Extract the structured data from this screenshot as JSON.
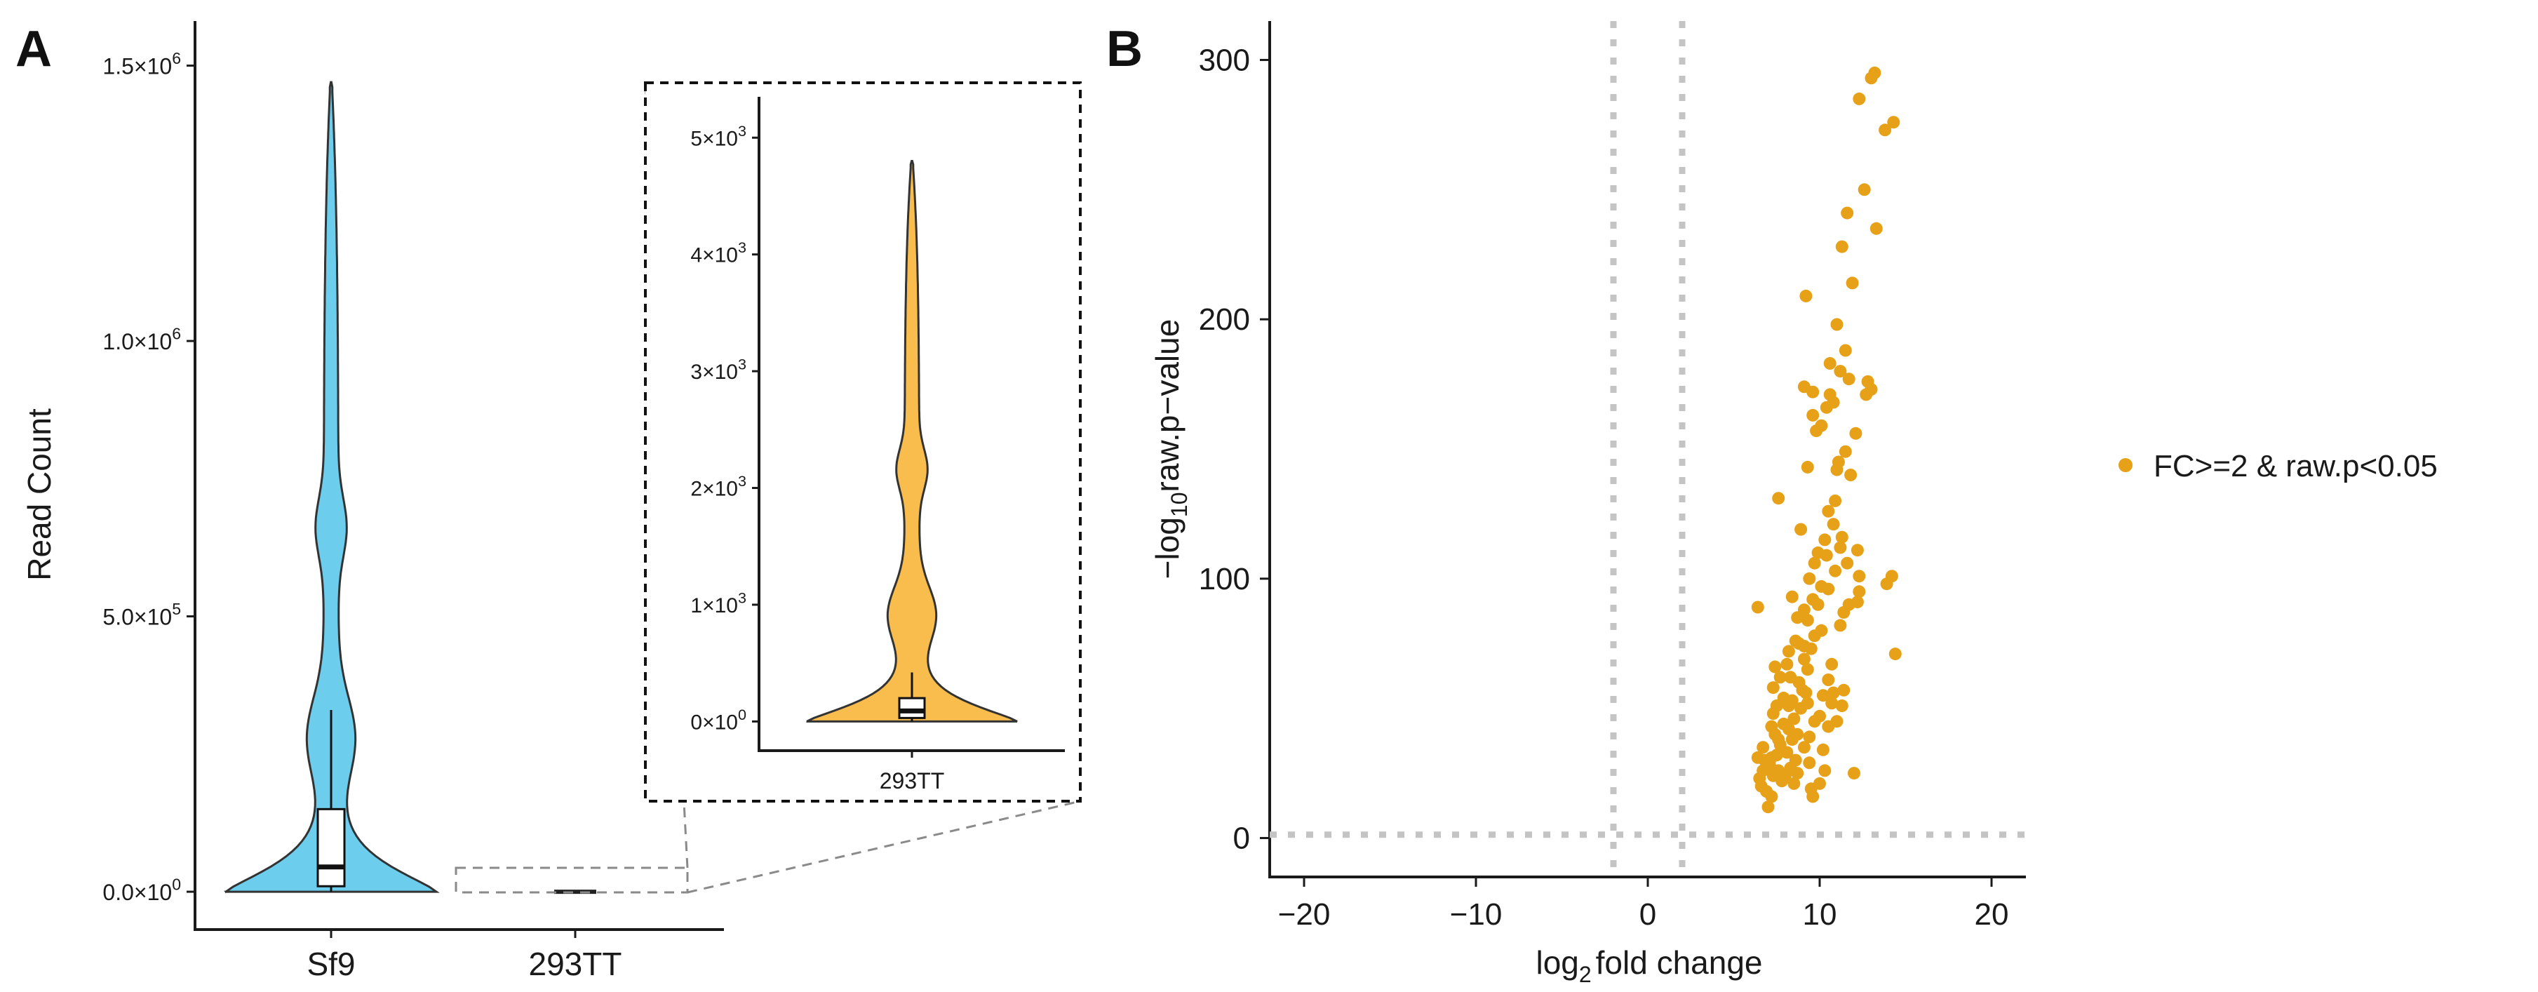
{
  "chart_data": [
    {
      "panel": "A",
      "type": "violin",
      "ylabel": "Read Count",
      "yticks": [
        {
          "value": 0,
          "mant": "0.0",
          "exp": "0"
        },
        {
          "value": 500000,
          "mant": "5.0",
          "exp": "5"
        },
        {
          "value": 1000000,
          "mant": "1.0",
          "exp": "6"
        },
        {
          "value": 1500000,
          "mant": "1.5",
          "exp": "6"
        }
      ],
      "ylim": [
        -5000,
        1530000
      ],
      "categories": [
        "Sf9",
        "293TT"
      ],
      "series": [
        {
          "name": "Sf9",
          "color": "#6ccdec",
          "max": 1470000,
          "q1": 10000,
          "median": 45000,
          "q3": 150000,
          "whisker_low": 0,
          "whisker_high": 330000
        },
        {
          "name": "293TT",
          "color": "#f9bd4e",
          "max": 4800,
          "q1": 30,
          "median": 90,
          "q3": 200,
          "whisker_low": 0,
          "whisker_high": 420
        }
      ],
      "inset": {
        "category": "293TT",
        "yticks": [
          {
            "value": 0,
            "mant": "0",
            "exp": "0"
          },
          {
            "value": 1000,
            "mant": "1",
            "exp": "3"
          },
          {
            "value": 2000,
            "mant": "2",
            "exp": "3"
          },
          {
            "value": 3000,
            "mant": "3",
            "exp": "3"
          },
          {
            "value": 4000,
            "mant": "4",
            "exp": "3"
          },
          {
            "value": 5000,
            "mant": "5",
            "exp": "3"
          }
        ],
        "ylim": [
          -250,
          5350
        ]
      }
    },
    {
      "panel": "B",
      "type": "scatter",
      "xlabel_main": "log",
      "xlabel_sub": "2",
      "xlabel_rest": "fold change",
      "ylabel_pre": "−log",
      "ylabel_sub": "10",
      "ylabel_rest": "raw.p−value",
      "xlim": [
        -22,
        22
      ],
      "ylim": [
        -15,
        315
      ],
      "xticks": [
        -20,
        -10,
        0,
        10,
        20
      ],
      "xtick_labels": [
        "−20",
        "−10",
        "0",
        "10",
        "20"
      ],
      "yticks": [
        0,
        100,
        200,
        300
      ],
      "vlines": [
        -2,
        2
      ],
      "hline": 1.3,
      "point_color": "#e6a118",
      "legend_label": "FC>=2 & raw.p<0.05",
      "legend_position": "right",
      "points": [
        [
          13.2,
          295
        ],
        [
          13,
          293
        ],
        [
          12.3,
          285
        ],
        [
          14.3,
          276
        ],
        [
          13.8,
          273
        ],
        [
          12.6,
          250
        ],
        [
          11.6,
          241
        ],
        [
          13.3,
          235
        ],
        [
          11.3,
          228
        ],
        [
          11.9,
          214
        ],
        [
          9.2,
          209
        ],
        [
          11,
          198
        ],
        [
          11.5,
          188
        ],
        [
          10.6,
          183
        ],
        [
          11.2,
          180
        ],
        [
          11.7,
          177
        ],
        [
          12.8,
          176
        ],
        [
          13,
          173
        ],
        [
          12.7,
          171
        ],
        [
          9.1,
          174
        ],
        [
          9.6,
          172
        ],
        [
          10.6,
          171
        ],
        [
          10.8,
          168
        ],
        [
          10.4,
          166
        ],
        [
          9.6,
          163
        ],
        [
          10.1,
          159
        ],
        [
          9.8,
          157
        ],
        [
          12.1,
          156
        ],
        [
          11.5,
          149
        ],
        [
          11.1,
          145
        ],
        [
          9.3,
          143
        ],
        [
          11.8,
          140
        ],
        [
          11,
          142
        ],
        [
          7.6,
          131
        ],
        [
          10.5,
          126
        ],
        [
          10.8,
          121
        ],
        [
          8.9,
          119
        ],
        [
          11.3,
          116
        ],
        [
          11.2,
          112
        ],
        [
          9.9,
          110
        ],
        [
          12.2,
          111
        ],
        [
          10.4,
          109
        ],
        [
          9.7,
          106
        ],
        [
          11.6,
          106
        ],
        [
          10.9,
          103
        ],
        [
          9.4,
          100
        ],
        [
          12.3,
          101
        ],
        [
          14.2,
          101
        ],
        [
          13.9,
          98
        ],
        [
          10.1,
          97
        ],
        [
          10.5,
          96
        ],
        [
          12.3,
          95
        ],
        [
          9.6,
          92
        ],
        [
          8.4,
          93
        ],
        [
          11.7,
          90
        ],
        [
          12.2,
          91
        ],
        [
          6.4,
          89
        ],
        [
          9.1,
          88
        ],
        [
          11.4,
          87
        ],
        [
          9.3,
          84
        ],
        [
          11.2,
          82
        ],
        [
          10.1,
          80
        ],
        [
          9.7,
          78
        ],
        [
          8.6,
          76
        ],
        [
          8.8,
          75
        ],
        [
          9.1,
          74
        ],
        [
          9.5,
          73
        ],
        [
          8.2,
          72
        ],
        [
          14.4,
          71
        ],
        [
          9.1,
          69
        ],
        [
          8.1,
          67
        ],
        [
          10.7,
          67
        ],
        [
          7.4,
          66
        ],
        [
          9.3,
          65
        ],
        [
          8.3,
          62
        ],
        [
          7.7,
          62
        ],
        [
          10.5,
          61
        ],
        [
          7.3,
          58
        ],
        [
          9,
          57
        ],
        [
          9.2,
          56
        ],
        [
          10.8,
          56
        ],
        [
          11.4,
          57
        ],
        [
          7.9,
          54
        ],
        [
          10.2,
          55
        ],
        [
          8.4,
          53
        ],
        [
          9.3,
          52
        ],
        [
          7.5,
          51
        ],
        [
          8.2,
          51
        ],
        [
          10.7,
          52
        ],
        [
          11.3,
          51
        ],
        [
          8.9,
          50
        ],
        [
          7.3,
          48
        ],
        [
          10,
          47
        ],
        [
          8.5,
          46
        ],
        [
          11,
          45
        ],
        [
          9.7,
          45
        ],
        [
          7.9,
          44
        ],
        [
          7.2,
          43
        ],
        [
          8.2,
          42
        ],
        [
          10.5,
          43
        ],
        [
          8.7,
          40
        ],
        [
          9.4,
          39
        ],
        [
          7.6,
          38
        ],
        [
          8.4,
          38
        ],
        [
          7.7,
          36
        ],
        [
          6.7,
          35
        ],
        [
          9.1,
          35
        ],
        [
          10.2,
          34
        ],
        [
          8.1,
          33
        ],
        [
          7.5,
          32
        ],
        [
          6.4,
          31
        ],
        [
          7.2,
          31
        ],
        [
          8.6,
          30
        ],
        [
          9.4,
          29
        ],
        [
          8.3,
          27
        ],
        [
          7.1,
          28
        ],
        [
          6.7,
          26
        ],
        [
          7.6,
          26
        ],
        [
          8.7,
          25
        ],
        [
          10.3,
          26
        ],
        [
          12,
          25
        ],
        [
          7.3,
          24
        ],
        [
          8,
          24
        ],
        [
          6.5,
          23
        ],
        [
          7.8,
          22
        ],
        [
          10,
          21
        ],
        [
          9.5,
          19
        ],
        [
          6.9,
          18
        ],
        [
          7.2,
          16
        ],
        [
          9.6,
          16
        ],
        [
          7,
          12
        ],
        [
          6.6,
          20
        ],
        [
          8.5,
          21
        ],
        [
          6.8,
          30
        ],
        [
          7.4,
          40
        ],
        [
          8.8,
          60
        ],
        [
          10.9,
          130
        ],
        [
          9.9,
          90
        ],
        [
          8.7,
          85
        ],
        [
          10.3,
          115
        ]
      ]
    }
  ]
}
